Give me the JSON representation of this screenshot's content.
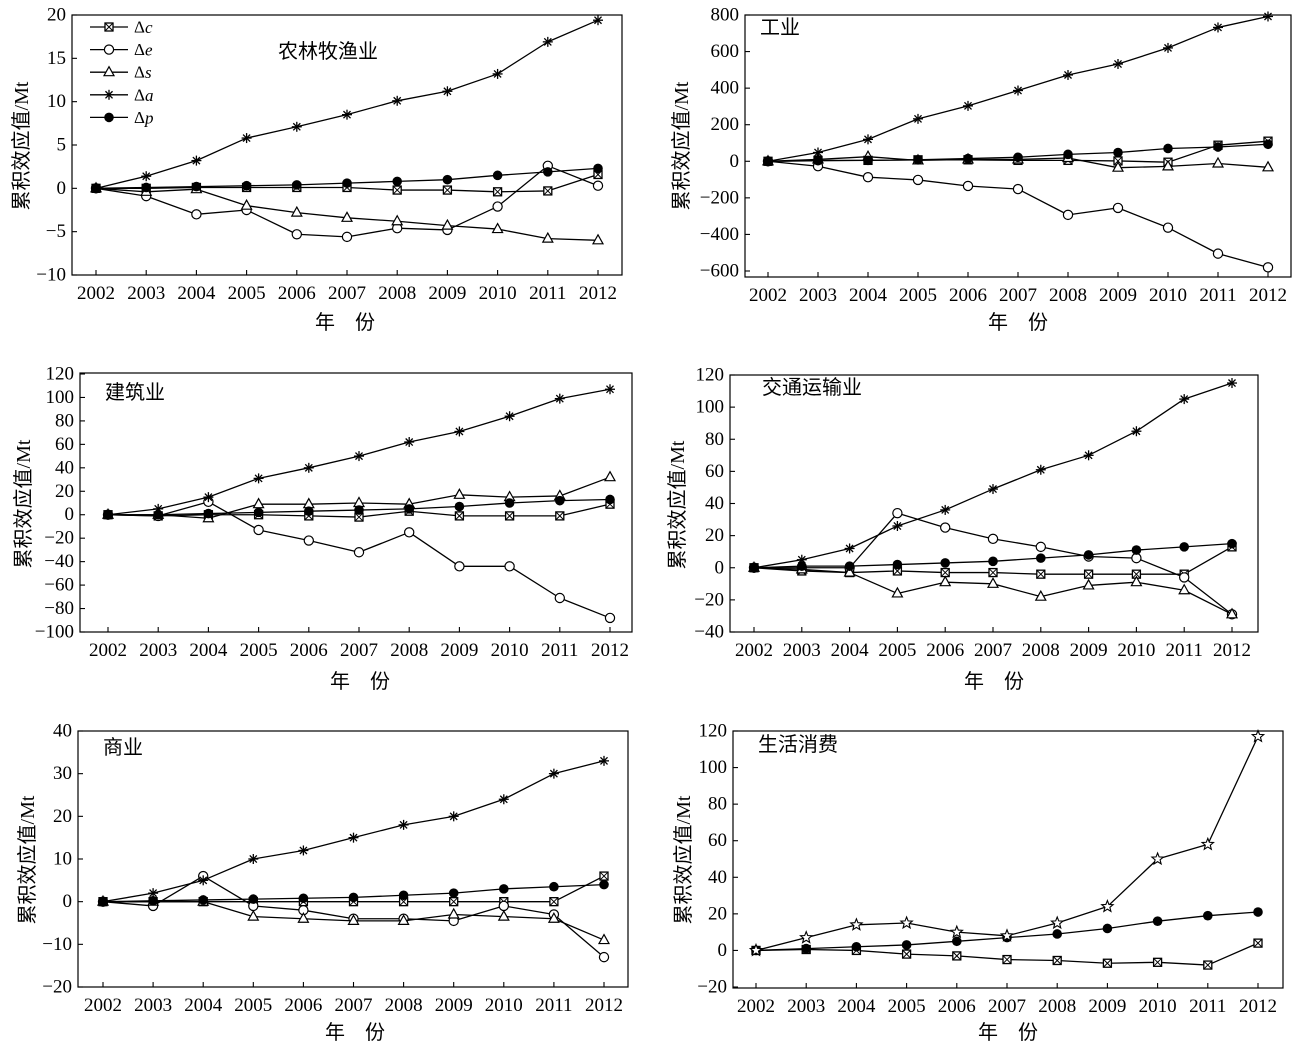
{
  "chart_data": [
    {
      "type": "line",
      "title": "农林牧渔业",
      "xlabel": "年　份",
      "ylabel": "累积效应值/Mt",
      "x": [
        2002,
        2003,
        2004,
        2005,
        2006,
        2007,
        2008,
        2009,
        2010,
        2011,
        2012
      ],
      "ylim": [
        -10,
        20
      ],
      "yticks": [
        -10,
        -5,
        0,
        5,
        10,
        15,
        20
      ],
      "grid": false,
      "legend": "top-left",
      "series": [
        {
          "name": "Δc",
          "marker": "square-cross",
          "values": [
            0,
            0.0,
            0.1,
            0.1,
            0.1,
            0.1,
            -0.2,
            -0.2,
            -0.4,
            -0.3,
            1.6
          ]
        },
        {
          "name": "Δe",
          "marker": "open-circle",
          "values": [
            0,
            -0.9,
            -3.0,
            -2.5,
            -5.3,
            -5.6,
            -4.6,
            -4.8,
            -2.1,
            2.6,
            0.3
          ]
        },
        {
          "name": "Δs",
          "marker": "open-triangle",
          "values": [
            0,
            -0.4,
            -0.1,
            -2.0,
            -2.8,
            -3.4,
            -3.8,
            -4.3,
            -4.7,
            -5.8,
            -6.0
          ]
        },
        {
          "name": "Δa",
          "marker": "asterisk",
          "values": [
            0,
            1.4,
            3.2,
            5.8,
            7.1,
            8.5,
            10.1,
            11.2,
            13.2,
            16.9,
            19.4
          ]
        },
        {
          "name": "Δp",
          "marker": "filled-circle",
          "values": [
            0,
            0.1,
            0.2,
            0.3,
            0.4,
            0.6,
            0.8,
            1.0,
            1.5,
            1.9,
            2.3
          ]
        }
      ]
    },
    {
      "type": "line",
      "title": "工业",
      "xlabel": "年　份",
      "ylabel": "累积效应值/Mt",
      "x": [
        2002,
        2003,
        2004,
        2005,
        2006,
        2007,
        2008,
        2009,
        2010,
        2011,
        2012
      ],
      "ylim": [
        -600,
        800
      ],
      "yticks": [
        -600,
        -400,
        -200,
        0,
        200,
        400,
        600,
        800
      ],
      "grid": false,
      "series": [
        {
          "marker": "square-cross",
          "values": [
            0,
            5,
            5,
            8,
            8,
            5,
            5,
            2,
            -5,
            88,
            110
          ]
        },
        {
          "marker": "open-circle",
          "values": [
            0,
            -27,
            -87,
            -102,
            -135,
            -152,
            -293,
            -255,
            -363,
            -505,
            -580
          ]
        },
        {
          "marker": "open-triangle",
          "values": [
            0,
            10,
            25,
            5,
            10,
            10,
            18,
            -35,
            -28,
            -12,
            -33
          ]
        },
        {
          "marker": "asterisk",
          "values": [
            0,
            48,
            120,
            232,
            303,
            387,
            472,
            532,
            620,
            732,
            792
          ]
        },
        {
          "marker": "filled-circle",
          "values": [
            0,
            3,
            5,
            8,
            15,
            22,
            38,
            48,
            70,
            78,
            93
          ]
        }
      ]
    },
    {
      "type": "line",
      "title": "建筑业",
      "xlabel": "年　份",
      "ylabel": "累积效应值/Mt",
      "x": [
        2002,
        2003,
        2004,
        2005,
        2006,
        2007,
        2008,
        2009,
        2010,
        2011,
        2012
      ],
      "ylim": [
        -100,
        120
      ],
      "yticks": [
        -100,
        -80,
        -60,
        -40,
        -20,
        0,
        20,
        40,
        60,
        80,
        100,
        120
      ],
      "grid": false,
      "series": [
        {
          "marker": "square-cross",
          "values": [
            0,
            -1,
            0,
            0,
            -1,
            -2,
            3,
            -1,
            -1,
            -1,
            9
          ]
        },
        {
          "marker": "open-circle",
          "values": [
            0,
            -1,
            11,
            -13,
            -22,
            -32,
            -15,
            -44,
            -44,
            -71,
            -88
          ]
        },
        {
          "marker": "open-triangle",
          "values": [
            0,
            0,
            -3,
            9,
            9,
            10,
            9,
            17,
            15,
            16,
            32
          ]
        },
        {
          "marker": "asterisk",
          "values": [
            0,
            5,
            15,
            31,
            40,
            50,
            62,
            71,
            84,
            99,
            107
          ]
        },
        {
          "marker": "filled-circle",
          "values": [
            0,
            0,
            1,
            2,
            3,
            4,
            5,
            7,
            10,
            12,
            13
          ]
        }
      ]
    },
    {
      "type": "line",
      "title": "交通运输业",
      "xlabel": "年　份",
      "ylabel": "累积效应值/Mt",
      "x": [
        2002,
        2003,
        2004,
        2005,
        2006,
        2007,
        2008,
        2009,
        2010,
        2011,
        2012
      ],
      "ylim": [
        -40,
        120
      ],
      "yticks": [
        -40,
        -20,
        0,
        20,
        40,
        60,
        80,
        100,
        120
      ],
      "grid": false,
      "series": [
        {
          "marker": "square-cross",
          "values": [
            0,
            -2,
            -3,
            -2,
            -3,
            -3,
            -4,
            -4,
            -4,
            -4,
            13
          ]
        },
        {
          "marker": "open-circle",
          "values": [
            0,
            0,
            0,
            34,
            25,
            18,
            13,
            7,
            6,
            -6,
            -29
          ]
        },
        {
          "marker": "open-triangle",
          "values": [
            0,
            -1,
            -3,
            -16,
            -9,
            -10,
            -18,
            -11,
            -9,
            -14,
            -29
          ]
        },
        {
          "marker": "asterisk",
          "values": [
            0,
            5,
            12,
            26,
            36,
            49,
            61,
            70,
            85,
            105,
            115
          ]
        },
        {
          "marker": "filled-circle",
          "values": [
            0,
            1,
            1,
            2,
            3,
            4,
            6,
            8,
            11,
            13,
            15
          ]
        }
      ]
    },
    {
      "type": "line",
      "title": "商业",
      "xlabel": "年　份",
      "ylabel": "累积效应值/Mt",
      "x": [
        2002,
        2003,
        2004,
        2005,
        2006,
        2007,
        2008,
        2009,
        2010,
        2011,
        2012
      ],
      "ylim": [
        -20,
        40
      ],
      "yticks": [
        -20,
        -10,
        0,
        10,
        20,
        30,
        40
      ],
      "grid": false,
      "series": [
        {
          "marker": "square-cross",
          "values": [
            0,
            0,
            0,
            0,
            0,
            0,
            0,
            0,
            0,
            0,
            6
          ]
        },
        {
          "marker": "open-circle",
          "values": [
            0,
            -1,
            6,
            -1,
            -2,
            -4,
            -4,
            -4.5,
            -1,
            -3,
            -13
          ]
        },
        {
          "marker": "open-triangle",
          "values": [
            0,
            0,
            0,
            -3.5,
            -4,
            -4.5,
            -4.5,
            -3,
            -3.5,
            -4,
            -9
          ]
        },
        {
          "marker": "asterisk",
          "values": [
            0,
            2,
            5,
            10,
            12,
            15,
            18,
            20,
            24,
            30,
            33
          ]
        },
        {
          "marker": "filled-circle",
          "values": [
            0,
            0.2,
            0.4,
            0.6,
            0.8,
            1,
            1.5,
            2,
            3,
            3.5,
            4
          ]
        }
      ]
    },
    {
      "type": "line",
      "title": "生活消费",
      "xlabel": "年　份",
      "ylabel": "累积效应值/Mt",
      "x": [
        2002,
        2003,
        2004,
        2005,
        2006,
        2007,
        2008,
        2009,
        2010,
        2011,
        2012
      ],
      "ylim": [
        -20,
        120
      ],
      "yticks": [
        -20,
        0,
        20,
        40,
        60,
        80,
        100,
        120
      ],
      "grid": false,
      "series": [
        {
          "marker": "square-cross",
          "values": [
            0,
            0.5,
            0,
            -2,
            -3,
            -5,
            -5.5,
            -7,
            -6.5,
            -8,
            4
          ]
        },
        {
          "marker": "filled-circle",
          "values": [
            0,
            1,
            2,
            3,
            5,
            7,
            9,
            12,
            16,
            19,
            21
          ]
        },
        {
          "marker": "open-star",
          "values": [
            0,
            7,
            14,
            15,
            10,
            8,
            15,
            24,
            50,
            58,
            117
          ]
        }
      ]
    }
  ]
}
